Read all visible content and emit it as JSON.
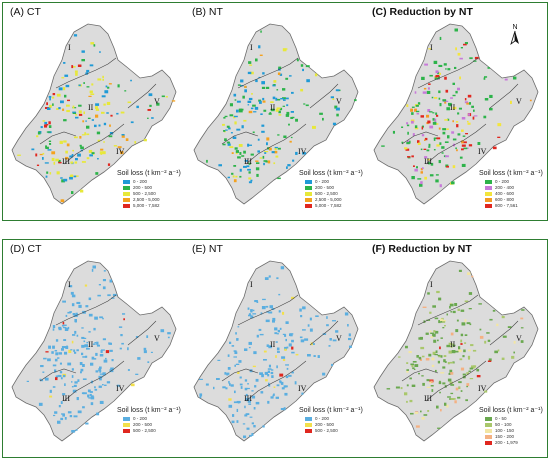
{
  "top_row": [
    {
      "title": "(A)  CT",
      "legend_title": "Soil loss (t km⁻² a⁻¹)",
      "legend": [
        {
          "label": "0 - 200",
          "color": "#1f9ad6"
        },
        {
          "label": "200 - 500",
          "color": "#2db34a"
        },
        {
          "label": "500 - 2,500",
          "color": "#e7e83a"
        },
        {
          "label": "2,500 - 5,000",
          "color": "#f4a21e"
        },
        {
          "label": "5,000 - 7,582",
          "color": "#e0271f"
        }
      ]
    },
    {
      "title": "(B)  NT",
      "legend_title": "Soil loss (t km⁻² a⁻¹)",
      "legend": [
        {
          "label": "0 - 200",
          "color": "#1f9ad6"
        },
        {
          "label": "200 - 500",
          "color": "#2db34a"
        },
        {
          "label": "500 - 2,500",
          "color": "#e7e83a"
        },
        {
          "label": "2,500 - 5,000",
          "color": "#f4a21e"
        },
        {
          "label": "5,000 - 7,582",
          "color": "#e0271f"
        }
      ]
    },
    {
      "title": "(C)  Reduction by NT",
      "legend_title": "Soil loss (t km⁻² a⁻¹)",
      "legend": [
        {
          "label": "0 - 200",
          "color": "#2db34a"
        },
        {
          "label": "200 - 400",
          "color": "#c77ad9"
        },
        {
          "label": "400 - 600",
          "color": "#f3e53c"
        },
        {
          "label": "600 - 800",
          "color": "#f49a23"
        },
        {
          "label": "800 - 7,561",
          "color": "#e0271f"
        }
      ]
    }
  ],
  "bottom_row": [
    {
      "title": "(D)  CT",
      "legend_title": "Soil loss (t km⁻² a⁻¹)",
      "legend": [
        {
          "label": "0 - 200",
          "color": "#5aaee0"
        },
        {
          "label": "200 - 500",
          "color": "#f2e04b"
        },
        {
          "label": "500 - 2,500",
          "color": "#e0271f"
        }
      ]
    },
    {
      "title": "(E)  NT",
      "legend_title": "Soil loss (t km⁻² a⁻¹)",
      "legend": [
        {
          "label": "0 - 200",
          "color": "#5aaee0"
        },
        {
          "label": "200 - 500",
          "color": "#f2e04b"
        },
        {
          "label": "500 - 2,500",
          "color": "#e0271f"
        }
      ]
    },
    {
      "title": "(F)  Reduction  by NT",
      "legend_title": "Soil loss (t km⁻² a⁻¹)",
      "legend": [
        {
          "label": "0 - 50",
          "color": "#6aa84f"
        },
        {
          "label": "50 - 100",
          "color": "#a9c76b"
        },
        {
          "label": "100 - 150",
          "color": "#f3e6a3"
        },
        {
          "label": "150 - 200",
          "color": "#f4b183"
        },
        {
          "label": "200 - 1,979",
          "color": "#e0271f"
        }
      ]
    }
  ],
  "regions": [
    "I",
    "II",
    "III",
    "IV",
    "V"
  ],
  "north_label": "N",
  "colors": {
    "land": "#dcdcdc",
    "outline": "#6b6b6b",
    "frame": "#2e7d32"
  }
}
